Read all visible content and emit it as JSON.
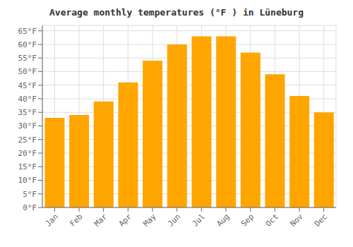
{
  "chart_data": {
    "type": "bar",
    "title": "Average monthly temperatures (°F ) in Lüneburg",
    "categories": [
      "Jan",
      "Feb",
      "Mar",
      "Apr",
      "May",
      "Jun",
      "Jul",
      "Aug",
      "Sep",
      "Oct",
      "Nov",
      "Dec"
    ],
    "values": [
      33,
      34,
      39,
      46,
      54,
      60,
      63,
      63,
      57,
      49,
      41,
      35
    ],
    "color": "#FFA500",
    "ylim": [
      0,
      67
    ],
    "yticks": [
      {
        "value": 0,
        "label": "0°F"
      },
      {
        "value": 5,
        "label": "5°F"
      },
      {
        "value": 10,
        "label": "10°F"
      },
      {
        "value": 15,
        "label": "15°F"
      },
      {
        "value": 20,
        "label": "20°F"
      },
      {
        "value": 25,
        "label": "25°F"
      },
      {
        "value": 30,
        "label": "30°F"
      },
      {
        "value": 35,
        "label": "35°F"
      },
      {
        "value": 40,
        "label": "40°F"
      },
      {
        "value": 45,
        "label": "45°F"
      },
      {
        "value": 50,
        "label": "50°F"
      },
      {
        "value": 55,
        "label": "55°F"
      },
      {
        "value": 60,
        "label": "60°F"
      },
      {
        "value": 65,
        "label": "65°F"
      }
    ],
    "grid": true
  }
}
